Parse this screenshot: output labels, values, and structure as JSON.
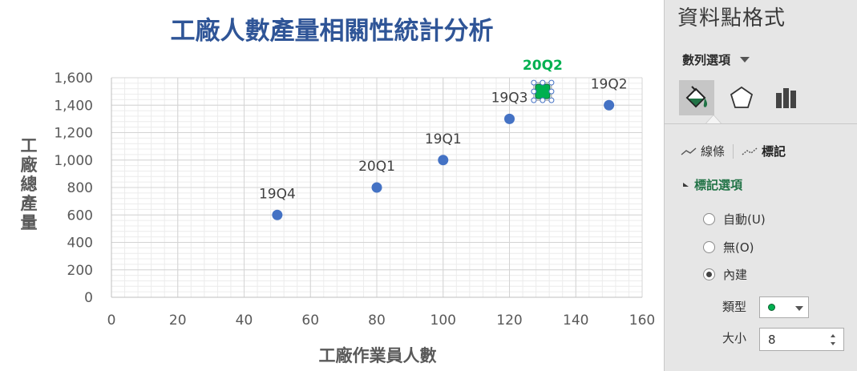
{
  "chart_data": {
    "type": "scatter",
    "title": "工廠人數產量相關性統計分析",
    "xlabel": "工廠作業員人數",
    "ylabel": "工廠總產量",
    "xlim": [
      0,
      160
    ],
    "ylim": [
      0,
      1600
    ],
    "x_ticks": [
      0,
      20,
      40,
      60,
      80,
      100,
      120,
      140,
      160
    ],
    "y_ticks": [
      0,
      200,
      400,
      600,
      800,
      1000,
      1200,
      1400,
      1600
    ],
    "x_tick_labels": [
      "0",
      "20",
      "40",
      "60",
      "80",
      "100",
      "120",
      "140",
      "160"
    ],
    "y_tick_labels": [
      "0",
      "200",
      "400",
      "600",
      "800",
      "1,000",
      "1,200",
      "1,400",
      "1,600"
    ],
    "grid": true,
    "points": [
      {
        "label": "19Q4",
        "x": 50,
        "y": 600
      },
      {
        "label": "20Q1",
        "x": 80,
        "y": 800
      },
      {
        "label": "19Q1",
        "x": 100,
        "y": 1000
      },
      {
        "label": "19Q3",
        "x": 120,
        "y": 1300
      },
      {
        "label": "20Q2",
        "x": 130,
        "y": 1500,
        "selected": true
      },
      {
        "label": "19Q2",
        "x": 150,
        "y": 1400
      }
    ],
    "colors": {
      "marker": "#4472c4",
      "selected_marker": "#00b050",
      "selected_label": "#00b050",
      "title": "#2f5597"
    }
  },
  "pane": {
    "title": "資料點格式",
    "series_options": "數列選項",
    "icons": [
      "fill-bucket-icon",
      "pentagon-effects-icon",
      "bar-chart-options-icon"
    ],
    "subtabs": {
      "line": "線條",
      "marker": "標記"
    },
    "section": "標記選項",
    "radios": [
      {
        "label": "自動(U)",
        "checked": false
      },
      {
        "label": "無(O)",
        "checked": false
      },
      {
        "label": "內建",
        "checked": true
      }
    ],
    "type_label": "類型",
    "size_label": "大小",
    "size_value": "8"
  }
}
